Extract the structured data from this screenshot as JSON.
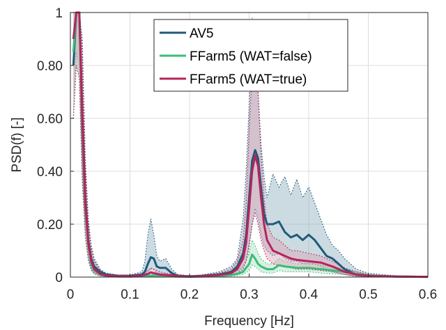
{
  "chart_data": {
    "type": "line",
    "title": "",
    "xlabel": "Frequency [Hz]",
    "ylabel": "PSD(f) [-]",
    "xlim": [
      0,
      0.6
    ],
    "ylim": [
      0,
      1
    ],
    "grid": true,
    "legend_position": "top-center",
    "x_ticks": [
      0,
      0.1,
      0.2,
      0.3,
      0.4,
      0.5,
      0.6
    ],
    "x_tick_labels": [
      "0",
      "0.1",
      "0.2",
      "0.3",
      "0.4",
      "0.5",
      "0.6"
    ],
    "y_ticks": [
      0,
      0.2,
      0.4,
      0.6,
      0.8,
      1
    ],
    "y_tick_labels": [
      "0",
      "0.20",
      "0.40",
      "0.60",
      "0.80",
      "1"
    ],
    "series": [
      {
        "name": "AV5",
        "color": "#1f5a7a",
        "band_color": "#8fb0bf",
        "x": [
          0.005,
          0.01,
          0.015,
          0.02,
          0.025,
          0.03,
          0.035,
          0.04,
          0.05,
          0.06,
          0.08,
          0.1,
          0.12,
          0.125,
          0.13,
          0.135,
          0.14,
          0.145,
          0.15,
          0.16,
          0.17,
          0.18,
          0.2,
          0.22,
          0.25,
          0.27,
          0.28,
          0.29,
          0.295,
          0.3,
          0.305,
          0.31,
          0.315,
          0.32,
          0.325,
          0.33,
          0.34,
          0.35,
          0.36,
          0.37,
          0.38,
          0.39,
          0.4,
          0.41,
          0.42,
          0.43,
          0.44,
          0.45,
          0.46,
          0.47,
          0.48,
          0.5,
          0.52,
          0.55,
          0.6
        ],
        "values": [
          0.8,
          1.0,
          1.0,
          0.62,
          0.3,
          0.14,
          0.07,
          0.04,
          0.02,
          0.01,
          0.005,
          0.005,
          0.01,
          0.02,
          0.05,
          0.075,
          0.07,
          0.04,
          0.035,
          0.035,
          0.015,
          0.005,
          0.003,
          0.005,
          0.01,
          0.02,
          0.04,
          0.09,
          0.16,
          0.3,
          0.44,
          0.48,
          0.45,
          0.34,
          0.24,
          0.2,
          0.2,
          0.21,
          0.17,
          0.15,
          0.16,
          0.14,
          0.16,
          0.14,
          0.11,
          0.08,
          0.07,
          0.05,
          0.03,
          0.02,
          0.01,
          0.006,
          0.004,
          0.002,
          0.001
        ],
        "band_upper": [
          1.0,
          1.0,
          1.0,
          0.9,
          0.45,
          0.22,
          0.12,
          0.07,
          0.03,
          0.015,
          0.008,
          0.008,
          0.02,
          0.06,
          0.16,
          0.22,
          0.16,
          0.08,
          0.06,
          0.07,
          0.03,
          0.01,
          0.005,
          0.008,
          0.02,
          0.04,
          0.07,
          0.22,
          0.4,
          0.65,
          0.98,
          0.9,
          0.7,
          0.5,
          0.38,
          0.3,
          0.39,
          0.34,
          0.38,
          0.31,
          0.37,
          0.3,
          0.34,
          0.28,
          0.22,
          0.16,
          0.12,
          0.1,
          0.07,
          0.05,
          0.03,
          0.015,
          0.01,
          0.005,
          0.003
        ],
        "band_lower": [
          0.6,
          0.85,
          0.8,
          0.4,
          0.18,
          0.08,
          0.03,
          0.015,
          0.008,
          0.004,
          0.002,
          0.002,
          0.004,
          0.008,
          0.02,
          0.03,
          0.03,
          0.015,
          0.012,
          0.012,
          0.005,
          0.002,
          0.001,
          0.002,
          0.004,
          0.008,
          0.015,
          0.04,
          0.06,
          0.12,
          0.2,
          0.26,
          0.22,
          0.16,
          0.12,
          0.1,
          0.08,
          0.09,
          0.07,
          0.06,
          0.06,
          0.05,
          0.05,
          0.05,
          0.04,
          0.03,
          0.02,
          0.015,
          0.01,
          0.005,
          0.003,
          0.002,
          0.001,
          0.0005,
          0.0002
        ]
      },
      {
        "name": "FFarm5 (WAT=false)",
        "color": "#3dbb7a",
        "band_color": "#a6dfbe",
        "x": [
          0.005,
          0.01,
          0.015,
          0.02,
          0.025,
          0.03,
          0.035,
          0.04,
          0.05,
          0.06,
          0.08,
          0.1,
          0.12,
          0.13,
          0.14,
          0.15,
          0.16,
          0.18,
          0.2,
          0.22,
          0.25,
          0.27,
          0.28,
          0.29,
          0.3,
          0.305,
          0.31,
          0.315,
          0.32,
          0.33,
          0.34,
          0.35,
          0.36,
          0.38,
          0.4,
          0.42,
          0.44,
          0.46,
          0.48,
          0.5,
          0.52,
          0.55,
          0.6
        ],
        "values": [
          0.85,
          1.0,
          1.0,
          0.55,
          0.26,
          0.12,
          0.05,
          0.025,
          0.01,
          0.005,
          0.002,
          0.002,
          0.003,
          0.004,
          0.006,
          0.005,
          0.004,
          0.002,
          0.001,
          0.002,
          0.004,
          0.008,
          0.012,
          0.02,
          0.05,
          0.085,
          0.07,
          0.05,
          0.04,
          0.03,
          0.03,
          0.045,
          0.04,
          0.035,
          0.035,
          0.03,
          0.025,
          0.02,
          0.012,
          0.006,
          0.003,
          0.002,
          0.001
        ],
        "band_upper": [
          1.0,
          1.0,
          1.0,
          0.8,
          0.4,
          0.2,
          0.09,
          0.05,
          0.02,
          0.01,
          0.004,
          0.004,
          0.006,
          0.008,
          0.012,
          0.01,
          0.008,
          0.004,
          0.002,
          0.004,
          0.008,
          0.015,
          0.025,
          0.04,
          0.09,
          0.14,
          0.12,
          0.09,
          0.07,
          0.05,
          0.05,
          0.07,
          0.06,
          0.05,
          0.05,
          0.045,
          0.04,
          0.03,
          0.02,
          0.01,
          0.005,
          0.003,
          0.002
        ],
        "band_lower": [
          0.6,
          0.8,
          0.75,
          0.35,
          0.15,
          0.06,
          0.025,
          0.01,
          0.004,
          0.002,
          0.001,
          0.001,
          0.001,
          0.002,
          0.003,
          0.002,
          0.002,
          0.001,
          0.0005,
          0.001,
          0.002,
          0.004,
          0.006,
          0.01,
          0.025,
          0.045,
          0.04,
          0.03,
          0.02,
          0.015,
          0.015,
          0.025,
          0.02,
          0.02,
          0.02,
          0.015,
          0.012,
          0.01,
          0.006,
          0.003,
          0.0015,
          0.001,
          0.0005
        ]
      },
      {
        "name": "FFarm5 (WAT=true)",
        "color": "#b5245c",
        "band_color": "#dba3b5",
        "x": [
          0.005,
          0.01,
          0.015,
          0.02,
          0.025,
          0.03,
          0.035,
          0.04,
          0.05,
          0.06,
          0.08,
          0.1,
          0.12,
          0.13,
          0.135,
          0.14,
          0.15,
          0.16,
          0.18,
          0.2,
          0.22,
          0.25,
          0.27,
          0.28,
          0.29,
          0.295,
          0.3,
          0.305,
          0.31,
          0.315,
          0.32,
          0.325,
          0.33,
          0.34,
          0.35,
          0.36,
          0.37,
          0.38,
          0.4,
          0.42,
          0.44,
          0.46,
          0.48,
          0.5,
          0.52,
          0.55,
          0.6
        ],
        "values": [
          0.9,
          1.0,
          1.0,
          0.6,
          0.28,
          0.13,
          0.06,
          0.03,
          0.012,
          0.006,
          0.003,
          0.003,
          0.006,
          0.012,
          0.018,
          0.015,
          0.01,
          0.008,
          0.004,
          0.002,
          0.003,
          0.008,
          0.015,
          0.03,
          0.07,
          0.13,
          0.26,
          0.4,
          0.46,
          0.42,
          0.3,
          0.2,
          0.14,
          0.1,
          0.09,
          0.08,
          0.07,
          0.065,
          0.06,
          0.055,
          0.04,
          0.02,
          0.01,
          0.005,
          0.003,
          0.002,
          0.001
        ],
        "band_upper": [
          1.0,
          1.0,
          1.0,
          0.85,
          0.42,
          0.21,
          0.11,
          0.06,
          0.025,
          0.012,
          0.006,
          0.006,
          0.012,
          0.025,
          0.035,
          0.03,
          0.02,
          0.015,
          0.008,
          0.004,
          0.006,
          0.015,
          0.03,
          0.06,
          0.14,
          0.28,
          0.55,
          0.78,
          0.85,
          0.7,
          0.46,
          0.3,
          0.2,
          0.15,
          0.14,
          0.12,
          0.1,
          0.1,
          0.09,
          0.08,
          0.06,
          0.035,
          0.02,
          0.01,
          0.006,
          0.004,
          0.002
        ],
        "band_lower": [
          0.6,
          0.8,
          0.75,
          0.38,
          0.16,
          0.07,
          0.03,
          0.015,
          0.005,
          0.002,
          0.001,
          0.001,
          0.002,
          0.005,
          0.008,
          0.006,
          0.004,
          0.003,
          0.001,
          0.0005,
          0.001,
          0.003,
          0.006,
          0.012,
          0.03,
          0.06,
          0.12,
          0.2,
          0.24,
          0.2,
          0.14,
          0.1,
          0.07,
          0.05,
          0.045,
          0.04,
          0.035,
          0.03,
          0.03,
          0.025,
          0.02,
          0.01,
          0.004,
          0.002,
          0.001,
          0.0008,
          0.0004
        ]
      }
    ]
  }
}
